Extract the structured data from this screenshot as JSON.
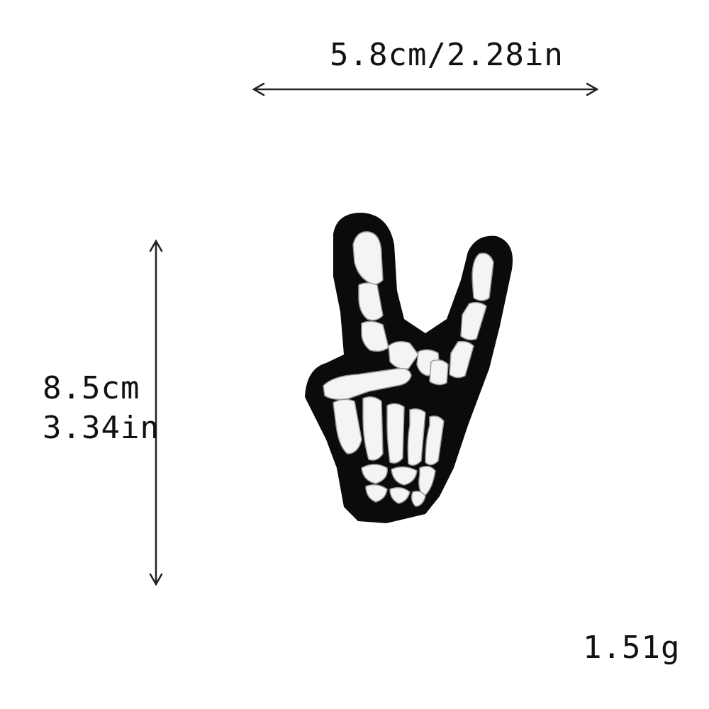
{
  "dimensions": {
    "width_label": "5.8cm/2.28in",
    "height_cm": "8.5cm",
    "height_in": "3.34in"
  },
  "weight_label": "1.51g",
  "product": {
    "icon": "skeleton-rock-hand-patch-icon",
    "colors": {
      "patch_border": "#0b0b0b",
      "embroidery": "#f4f4f4",
      "stitch_shadow": "#9a9a9a",
      "arrow": "#222222"
    }
  }
}
